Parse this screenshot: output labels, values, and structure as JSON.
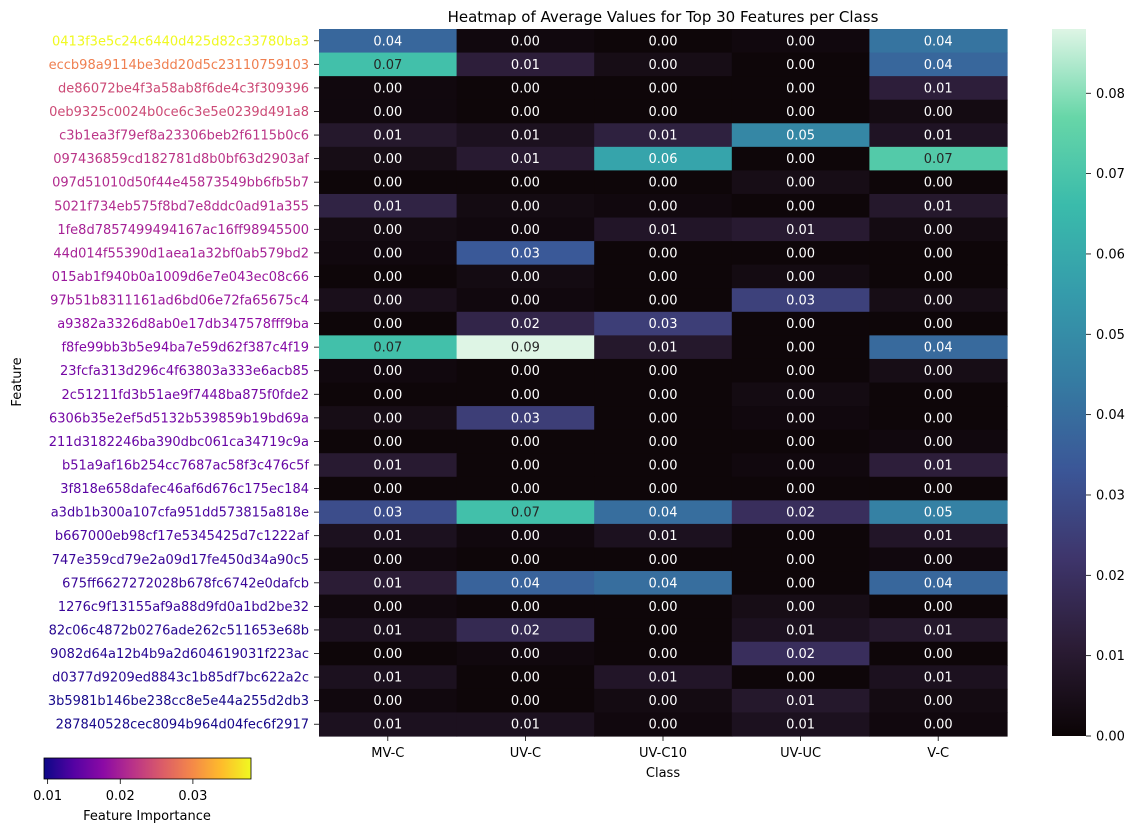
{
  "chart_data": {
    "type": "heatmap",
    "title": "Heatmap of Average Values for Top 30 Features per Class",
    "xlabel": "Class",
    "ylabel": "Feature",
    "columns": [
      "MV-C",
      "UV-C",
      "UV-C10",
      "UV-UC",
      "V-C"
    ],
    "rows": [
      {
        "name": "0413f3e5c24c6440d425d82c33780ba3",
        "importance": 0.038,
        "values": [
          0.04,
          0.0,
          0.0,
          0.0,
          0.04
        ],
        "raw": [
          0.038,
          0.002,
          0.001,
          0.002,
          0.042
        ]
      },
      {
        "name": "eccb98a9114be3dd20d5c23110759103",
        "importance": 0.029,
        "values": [
          0.07,
          0.01,
          0.0,
          0.0,
          0.04
        ],
        "raw": [
          0.068,
          0.012,
          0.004,
          0.001,
          0.038
        ]
      },
      {
        "name": "de86072be4f3a58ab8f6de4c3f309396",
        "importance": 0.024,
        "values": [
          0.0,
          0.0,
          0.0,
          0.0,
          0.01
        ],
        "raw": [
          0.002,
          0.001,
          0.001,
          0.001,
          0.012
        ]
      },
      {
        "name": "0eb9325c0024b0ce6c3e5e0239d491a8",
        "importance": 0.024,
        "values": [
          0.0,
          0.0,
          0.0,
          0.0,
          0.0
        ],
        "raw": [
          0.002,
          0.001,
          0.001,
          0.001,
          0.003
        ]
      },
      {
        "name": "c3b1ea3f79ef8a23306beb2f6115b0c6",
        "importance": 0.022,
        "values": [
          0.01,
          0.01,
          0.01,
          0.05,
          0.01
        ],
        "raw": [
          0.009,
          0.006,
          0.013,
          0.048,
          0.007
        ]
      },
      {
        "name": "097436859cd182781d8b0bf63d2903af",
        "importance": 0.022,
        "values": [
          0.0,
          0.01,
          0.06,
          0.0,
          0.07
        ],
        "raw": [
          0.004,
          0.01,
          0.058,
          0.001,
          0.072
        ]
      },
      {
        "name": "097d51010d50f44e45873549bb6fb5b7",
        "importance": 0.021,
        "values": [
          0.0,
          0.0,
          0.0,
          0.0,
          0.0
        ],
        "raw": [
          0.001,
          0.001,
          0.001,
          0.004,
          0.001
        ]
      },
      {
        "name": "5021f734eb575f8bd7e8ddc0ad91a355",
        "importance": 0.021,
        "values": [
          0.01,
          0.0,
          0.0,
          0.0,
          0.01
        ],
        "raw": [
          0.014,
          0.003,
          0.002,
          0.001,
          0.009
        ]
      },
      {
        "name": "1fe8d7857499494167ac16ff98945500",
        "importance": 0.02,
        "values": [
          0.0,
          0.0,
          0.01,
          0.01,
          0.0
        ],
        "raw": [
          0.003,
          0.002,
          0.008,
          0.01,
          0.003
        ]
      },
      {
        "name": "44d014f55390d1aea1a32bf0ab579bd2",
        "importance": 0.02,
        "values": [
          0.0,
          0.03,
          0.0,
          0.0,
          0.0
        ],
        "raw": [
          0.002,
          0.034,
          0.001,
          0.001,
          0.001
        ]
      },
      {
        "name": "015ab1f940b0a1009d6e7e043ec08c66",
        "importance": 0.019,
        "values": [
          0.0,
          0.0,
          0.0,
          0.0,
          0.0
        ],
        "raw": [
          0.001,
          0.003,
          0.001,
          0.003,
          0.001
        ]
      },
      {
        "name": "97b51b8311161ad6bd06e72fa65675c4",
        "importance": 0.019,
        "values": [
          0.0,
          0.0,
          0.0,
          0.03,
          0.0
        ],
        "raw": [
          0.005,
          0.002,
          0.001,
          0.026,
          0.004
        ]
      },
      {
        "name": "a9382a3326d8ab0e17db347578fff9ba",
        "importance": 0.018,
        "values": [
          0.0,
          0.02,
          0.03,
          0.0,
          0.0
        ],
        "raw": [
          0.001,
          0.015,
          0.025,
          0.001,
          0.001
        ]
      },
      {
        "name": "f8fe99bb3b5e94ba7e59d62f387c4f19",
        "importance": 0.017,
        "values": [
          0.07,
          0.09,
          0.01,
          0.0,
          0.04
        ],
        "raw": [
          0.068,
          0.088,
          0.009,
          0.001,
          0.039
        ]
      },
      {
        "name": "23fcfa313d296c4f63803a333e6acb85",
        "importance": 0.016,
        "values": [
          0.0,
          0.0,
          0.0,
          0.0,
          0.0
        ],
        "raw": [
          0.002,
          0.001,
          0.001,
          0.001,
          0.004
        ]
      },
      {
        "name": "2c51211fd3b51ae9f7448ba875f0fde2",
        "importance": 0.016,
        "values": [
          0.0,
          0.0,
          0.0,
          0.0,
          0.0
        ],
        "raw": [
          0.001,
          0.001,
          0.001,
          0.003,
          0.001
        ]
      },
      {
        "name": "6306b35e2ef5d5132b539859b19bd69a",
        "importance": 0.016,
        "values": [
          0.0,
          0.03,
          0.0,
          0.0,
          0.0
        ],
        "raw": [
          0.004,
          0.025,
          0.001,
          0.002,
          0.001
        ]
      },
      {
        "name": "211d3182246ba390dbc061ca34719c9a",
        "importance": 0.015,
        "values": [
          0.0,
          0.0,
          0.0,
          0.0,
          0.0
        ],
        "raw": [
          0.001,
          0.001,
          0.001,
          0.001,
          0.002
        ]
      },
      {
        "name": "b51a9af16b254cc7687ac58f3c476c5f",
        "importance": 0.015,
        "values": [
          0.01,
          0.0,
          0.0,
          0.0,
          0.01
        ],
        "raw": [
          0.01,
          0.001,
          0.001,
          0.002,
          0.012
        ]
      },
      {
        "name": "3f818e658dafec46af6d676c175ec184",
        "importance": 0.014,
        "values": [
          0.0,
          0.0,
          0.0,
          0.0,
          0.0
        ],
        "raw": [
          0.001,
          0.001,
          0.001,
          0.001,
          0.001
        ]
      },
      {
        "name": "a3db1b300a107cfa951dd573815a818e",
        "importance": 0.013,
        "values": [
          0.03,
          0.07,
          0.04,
          0.02,
          0.05
        ],
        "raw": [
          0.03,
          0.068,
          0.04,
          0.019,
          0.046
        ]
      },
      {
        "name": "b667000eb98cf17e5345425d7c1222af",
        "importance": 0.013,
        "values": [
          0.01,
          0.0,
          0.01,
          0.0,
          0.01
        ],
        "raw": [
          0.006,
          0.002,
          0.006,
          0.001,
          0.008
        ]
      },
      {
        "name": "747e359cd79e2a09d17fe450d34a90c5",
        "importance": 0.012,
        "values": [
          0.0,
          0.0,
          0.0,
          0.0,
          0.0
        ],
        "raw": [
          0.002,
          0.001,
          0.001,
          0.001,
          0.002
        ]
      },
      {
        "name": "675ff6627272028b678fc6742e0dafcb",
        "importance": 0.012,
        "values": [
          0.01,
          0.04,
          0.04,
          0.0,
          0.04
        ],
        "raw": [
          0.011,
          0.037,
          0.04,
          0.001,
          0.038
        ]
      },
      {
        "name": "1276c9f13155af9a88d9fd0a1bd2be32",
        "importance": 0.012,
        "values": [
          0.0,
          0.0,
          0.0,
          0.0,
          0.0
        ],
        "raw": [
          0.002,
          0.001,
          0.001,
          0.004,
          0.001
        ]
      },
      {
        "name": "82c06c4872b0276ade262c511653e68b",
        "importance": 0.011,
        "values": [
          0.01,
          0.02,
          0.0,
          0.01,
          0.01
        ],
        "raw": [
          0.006,
          0.017,
          0.001,
          0.006,
          0.009
        ]
      },
      {
        "name": "9082d64a12b4b9a2d604619031f223ac",
        "importance": 0.011,
        "values": [
          0.0,
          0.0,
          0.0,
          0.02,
          0.0
        ],
        "raw": [
          0.001,
          0.002,
          0.001,
          0.019,
          0.001
        ]
      },
      {
        "name": "d0377d9209ed8843c1b85df7bc622a2c",
        "importance": 0.011,
        "values": [
          0.01,
          0.0,
          0.01,
          0.0,
          0.01
        ],
        "raw": [
          0.006,
          0.001,
          0.008,
          0.001,
          0.006
        ]
      },
      {
        "name": "3b5981b146be238cc8e5e44a255d2db3",
        "importance": 0.01,
        "values": [
          0.0,
          0.0,
          0.0,
          0.01,
          0.0
        ],
        "raw": [
          0.002,
          0.001,
          0.003,
          0.009,
          0.003
        ]
      },
      {
        "name": "287840528cec8094b964d04fec6f2917",
        "importance": 0.01,
        "values": [
          0.01,
          0.01,
          0.0,
          0.01,
          0.0
        ],
        "raw": [
          0.006,
          0.006,
          0.002,
          0.006,
          0.002
        ]
      }
    ],
    "vmin": 0.0,
    "vmax": 0.088,
    "colormap": "mako",
    "colorbar_ticks": [
      0.0,
      0.01,
      0.02,
      0.03,
      0.04,
      0.05,
      0.06,
      0.07,
      0.08
    ],
    "colorbar_tick_labels": [
      "0.00",
      "0.01",
      "0.02",
      "0.03",
      "0.04",
      "0.05",
      "0.06",
      "0.07",
      "0.08"
    ],
    "importance_colorbar": {
      "label": "Feature Importance",
      "colormap": "plasma",
      "vmin": 0.0095,
      "vmax": 0.038,
      "ticks": [
        0.01,
        0.02,
        0.03
      ],
      "tick_labels": [
        "0.01",
        "0.02",
        "0.03"
      ]
    }
  }
}
